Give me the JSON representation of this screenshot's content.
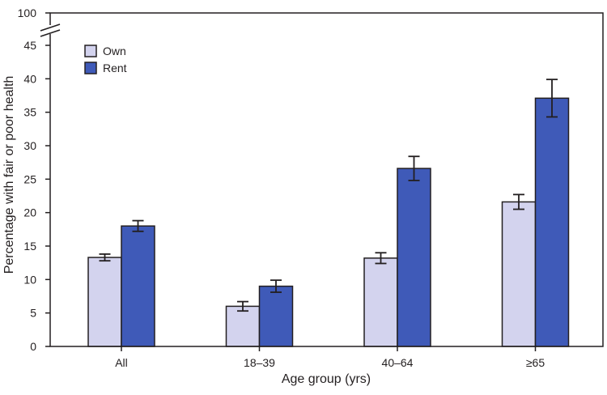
{
  "chart_data": {
    "type": "bar",
    "xlabel": "Age group (yrs)",
    "ylabel": "Percentage with fair or poor health",
    "categories": [
      "All",
      "18–39",
      "40–64",
      "≥65"
    ],
    "series": [
      {
        "name": "Own",
        "color": "#d3d3ee",
        "values": [
          13.3,
          6.0,
          13.2,
          21.6
        ],
        "error_low": [
          12.8,
          5.3,
          12.4,
          20.5
        ],
        "error_high": [
          13.8,
          6.7,
          14.0,
          22.7
        ]
      },
      {
        "name": "Rent",
        "color": "#3f5ab8",
        "values": [
          18.0,
          9.0,
          26.6,
          37.1
        ],
        "error_low": [
          17.2,
          8.1,
          24.8,
          34.3
        ],
        "error_high": [
          18.8,
          9.9,
          28.4,
          39.9
        ]
      }
    ],
    "yticks": [
      "0",
      "5",
      "10",
      "15",
      "20",
      "25",
      "30",
      "35",
      "40",
      "45",
      "100"
    ],
    "ylim": [
      0,
      100
    ],
    "axis_break": "between 45 and 100",
    "legend_position": "top-left"
  }
}
